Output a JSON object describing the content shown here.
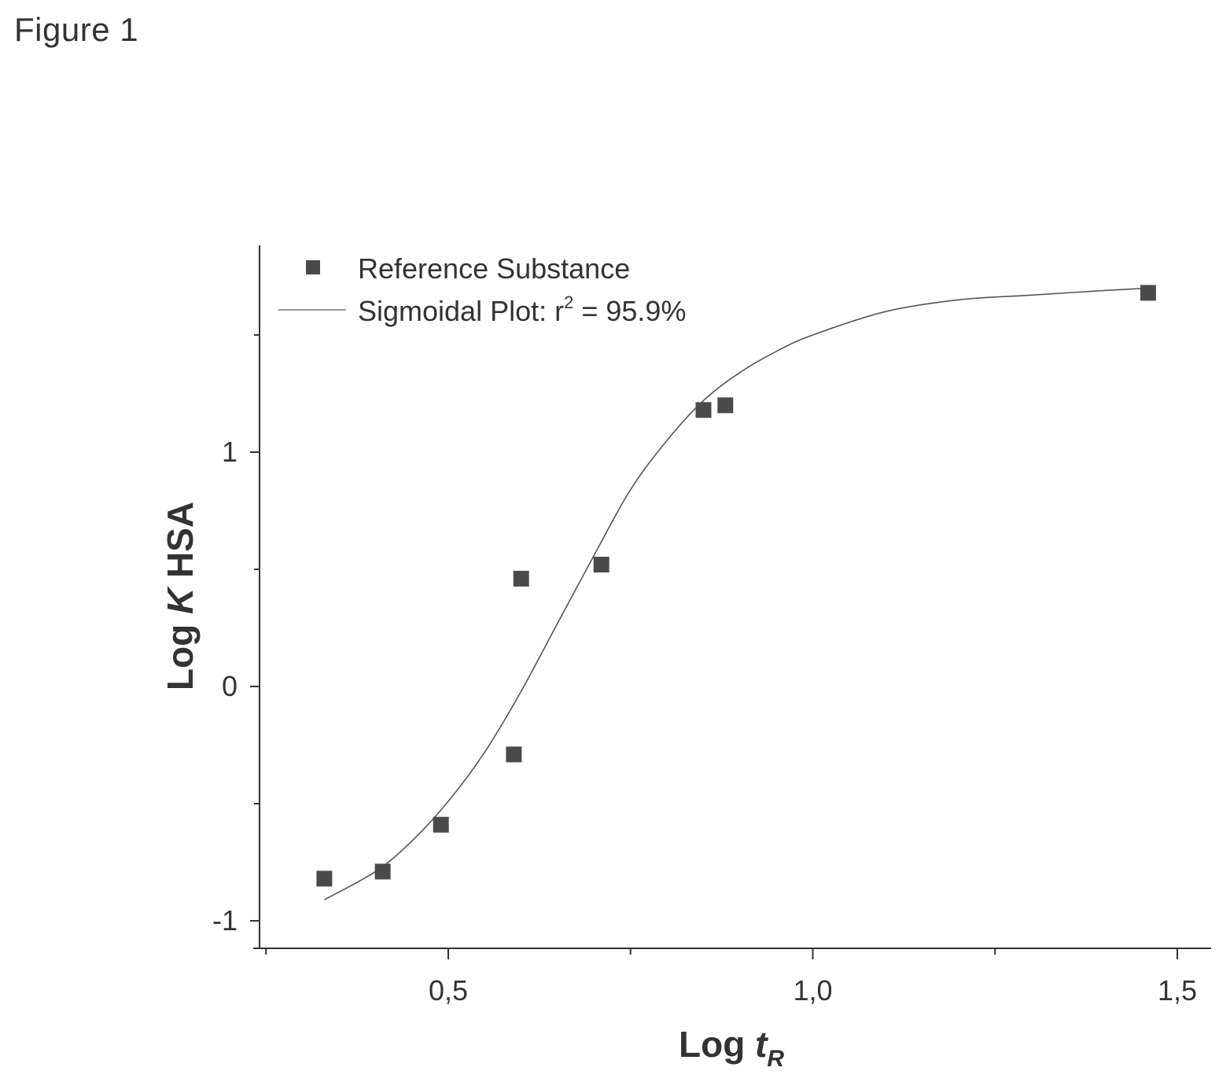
{
  "figure_label": "Figure 1",
  "chart_data": {
    "type": "scatter",
    "title": "",
    "xlabel_main": "Log ",
    "xlabel_italic": "t",
    "xlabel_sub": "R",
    "ylabel_main": "Log ",
    "ylabel_italic": "K",
    "ylabel_tail": " HSA",
    "xlim": [
      0.25,
      1.55
    ],
    "ylim": [
      -1.12,
      1.88
    ],
    "x_ticks": [
      {
        "value": 0.5,
        "label": "0,5"
      },
      {
        "value": 1.0,
        "label": "1,0"
      },
      {
        "value": 1.5,
        "label": "1,5"
      }
    ],
    "x_minor_ticks": [
      0.25,
      0.75,
      1.25
    ],
    "y_ticks": [
      {
        "value": -1,
        "label": "-1"
      },
      {
        "value": 0,
        "label": "0"
      },
      {
        "value": 1,
        "label": "1"
      }
    ],
    "y_minor_ticks": [
      -0.5,
      0.5,
      1.5
    ],
    "grid": false,
    "legend_position": "top-left",
    "series": [
      {
        "name": "Reference Substance",
        "kind": "scatter",
        "marker": "square",
        "color": "#4a4a4a",
        "x": [
          0.33,
          0.41,
          0.49,
          0.59,
          0.6,
          0.71,
          0.85,
          0.88,
          1.46
        ],
        "y": [
          -0.82,
          -0.79,
          -0.59,
          -0.29,
          0.46,
          0.52,
          1.18,
          1.2,
          1.68
        ]
      },
      {
        "name": "Sigmoidal Plot: r² = 95.9%",
        "name_main": "Sigmoidal Plot: r",
        "name_sup": "2",
        "name_tail": " = 95.9%",
        "kind": "line",
        "color": "#555555",
        "x": [
          0.33,
          0.4,
          0.45,
          0.5,
          0.55,
          0.6,
          0.65,
          0.7,
          0.75,
          0.8,
          0.85,
          0.9,
          0.95,
          1.0,
          1.1,
          1.2,
          1.3,
          1.4,
          1.46
        ],
        "y": [
          -0.91,
          -0.79,
          -0.66,
          -0.49,
          -0.28,
          -0.02,
          0.27,
          0.56,
          0.84,
          1.05,
          1.22,
          1.34,
          1.43,
          1.5,
          1.6,
          1.65,
          1.67,
          1.69,
          1.7
        ]
      }
    ]
  }
}
